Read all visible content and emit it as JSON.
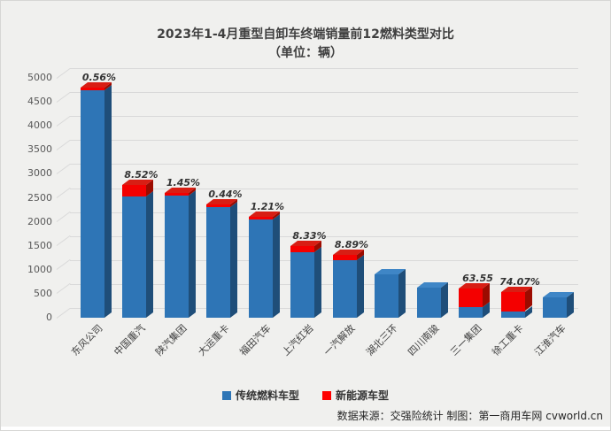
{
  "title": {
    "line1": "2023年1-4月重型自卸车终端销量前12燃料类型对比",
    "line2": "（单位：辆）"
  },
  "chart_data": {
    "type": "bar",
    "stacked": true,
    "style": "3d",
    "title": "2023年1-4月重型自卸车终端销量前12燃料类型对比（单位：辆）",
    "categories": [
      "东风公司",
      "中国重汽",
      "陕汽集团",
      "大运重卡",
      "福田汽车",
      "上汽红岩",
      "一汽解放",
      "湖北三环",
      "四川南骏",
      "三一集团",
      "徐工重卡",
      "江淮汽车"
    ],
    "series": [
      {
        "name": "传统燃料车型",
        "color": "#2E75B6",
        "values_est": [
          4763,
          2534,
          2572,
          2350,
          2084,
          1366,
          1194,
          900,
          620,
          219,
          137,
          430
        ]
      },
      {
        "name": "新能源车型",
        "color": "#F40000",
        "values_est": [
          27,
          236,
          38,
          10,
          26,
          124,
          116,
          0,
          0,
          381,
          393,
          0
        ]
      }
    ],
    "totals_est": [
      4790,
      2770,
      2610,
      2360,
      2110,
      1490,
      1310,
      900,
      620,
      600,
      530,
      430
    ],
    "ne_share_labels": [
      "0.56%",
      "8.52%",
      "1.45%",
      "0.44%",
      "1.21%",
      "8.33%",
      "8.89%",
      "",
      "",
      "63.55",
      "74.07%",
      ""
    ],
    "ylabel": "",
    "xlabel": "",
    "ylim": [
      0,
      5000
    ],
    "ytick_step": 500,
    "grid": true,
    "legend_position": "bottom"
  },
  "legend": {
    "items": [
      {
        "label": "传统燃料车型",
        "color": "#2E75B6"
      },
      {
        "label": "新能源车型",
        "color": "#FE0000"
      }
    ]
  },
  "footer": {
    "text": "数据来源：交强险统计 制图：第一商用车网 cvworld.cn"
  },
  "colors": {
    "background": "#F0F0EE",
    "gridline": "#D9D9D9",
    "bar_blue_front": "#2E75B6",
    "bar_blue_side": "#1F4E79",
    "bar_blue_top": "#3F86C6",
    "bar_red_front": "#F40000",
    "bar_red_side": "#9C0B00",
    "bar_red_top": "#D81E14",
    "axis_text": "#595959",
    "title_text": "#3F3F3F"
  }
}
